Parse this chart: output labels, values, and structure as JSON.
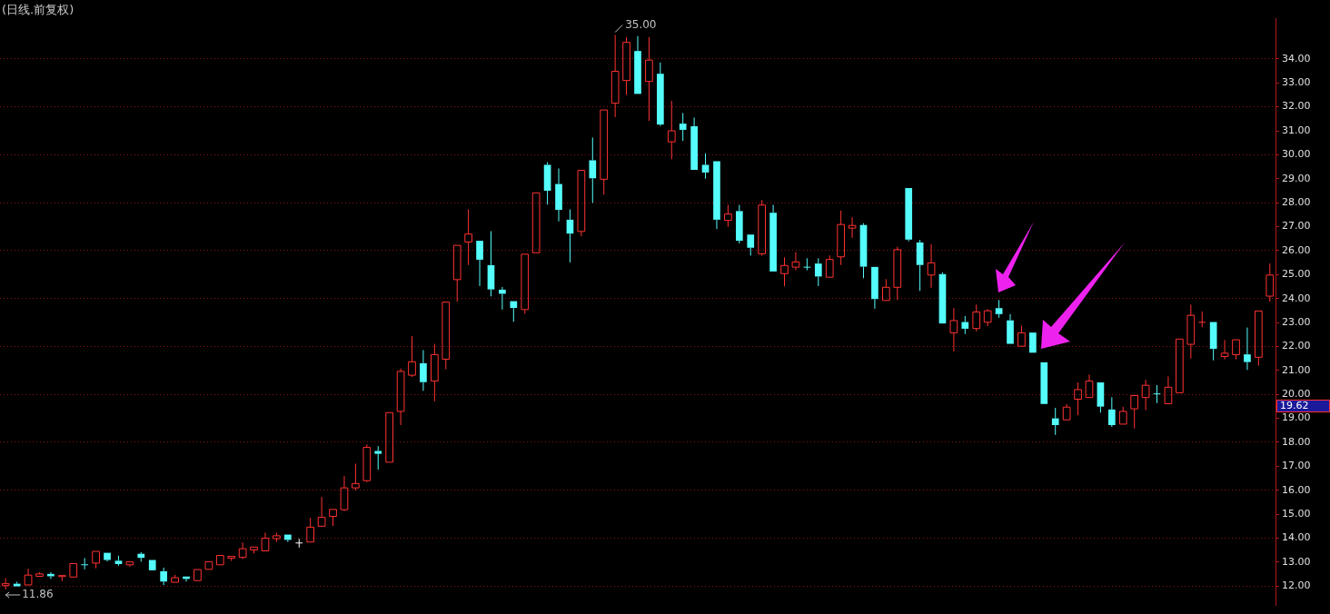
{
  "chart_data": {
    "type": "candlestick",
    "title": "(日线.前复权)",
    "categories": [
      null,
      null,
      null,
      null,
      null,
      null,
      null,
      null,
      null,
      null,
      null,
      null,
      null,
      null,
      null,
      null,
      null,
      null,
      null,
      null,
      null,
      null,
      null,
      null,
      null,
      null,
      null,
      null,
      null,
      null,
      null,
      null,
      null,
      null,
      null,
      null,
      null,
      null,
      null,
      null,
      null,
      null,
      null,
      null,
      null,
      null,
      null,
      null,
      null,
      null,
      null,
      null,
      null,
      null,
      null,
      null,
      null,
      null,
      null,
      null,
      null,
      null,
      null,
      null,
      null,
      null,
      null,
      null,
      null,
      null,
      null,
      null,
      null,
      null,
      null,
      null,
      null,
      null,
      null,
      null,
      null,
      null,
      null,
      null,
      null,
      null,
      null,
      null,
      null,
      null,
      null,
      null,
      null,
      null,
      null,
      null,
      null,
      null,
      null,
      null,
      null,
      null,
      null,
      null,
      null,
      null,
      null,
      null,
      null,
      null,
      null,
      null,
      null
    ],
    "ohlc": [
      [
        12.02,
        12.33,
        11.86,
        12.1
      ],
      [
        12.1,
        12.18,
        11.99,
        11.99
      ],
      [
        12.05,
        12.73,
        12.0,
        12.46
      ],
      [
        12.41,
        12.58,
        12.36,
        12.51
      ],
      [
        12.51,
        12.58,
        12.3,
        12.41
      ],
      [
        12.4,
        12.44,
        12.21,
        12.44
      ],
      [
        12.38,
        12.98,
        12.33,
        12.94
      ],
      [
        12.89,
        13.17,
        12.7,
        12.87
      ],
      [
        12.96,
        13.45,
        12.74,
        13.45
      ],
      [
        13.39,
        13.42,
        13.03,
        13.09
      ],
      [
        13.06,
        13.27,
        12.85,
        12.92
      ],
      [
        12.89,
        13.06,
        12.81,
        13.01
      ],
      [
        13.35,
        13.42,
        13.02,
        13.18
      ],
      [
        13.09,
        13.09,
        12.62,
        12.66
      ],
      [
        12.62,
        12.77,
        12.04,
        12.19
      ],
      [
        12.16,
        12.47,
        12.12,
        12.35
      ],
      [
        12.4,
        12.45,
        12.19,
        12.3
      ],
      [
        12.23,
        12.69,
        12.23,
        12.69
      ],
      [
        12.7,
        13.02,
        12.7,
        13.02
      ],
      [
        12.89,
        13.32,
        12.89,
        13.28
      ],
      [
        13.17,
        13.28,
        13.05,
        13.24
      ],
      [
        13.2,
        13.82,
        13.13,
        13.56
      ],
      [
        13.51,
        13.65,
        13.36,
        13.63
      ],
      [
        13.47,
        14.23,
        13.45,
        14.0
      ],
      [
        13.98,
        14.23,
        13.84,
        14.1
      ],
      [
        14.15,
        14.19,
        13.84,
        13.93
      ],
      [
        13.8,
        13.97,
        13.61,
        13.8
      ],
      [
        13.84,
        14.85,
        13.84,
        14.46
      ],
      [
        14.5,
        15.72,
        14.49,
        14.87
      ],
      [
        14.91,
        15.2,
        14.51,
        15.2
      ],
      [
        15.19,
        16.6,
        15.13,
        16.1
      ],
      [
        16.1,
        17.11,
        16.0,
        16.28
      ],
      [
        16.4,
        17.91,
        16.34,
        17.79
      ],
      [
        17.64,
        17.84,
        16.86,
        17.52
      ],
      [
        17.17,
        19.24,
        17.17,
        19.24
      ],
      [
        19.29,
        21.08,
        18.72,
        20.96
      ],
      [
        20.8,
        22.43,
        20.73,
        21.36
      ],
      [
        21.3,
        21.85,
        20.15,
        20.51
      ],
      [
        20.56,
        22.11,
        19.71,
        21.66
      ],
      [
        21.47,
        23.85,
        21.05,
        23.85
      ],
      [
        24.79,
        26.22,
        23.87,
        26.22
      ],
      [
        26.36,
        27.72,
        25.4,
        26.69
      ],
      [
        26.41,
        26.42,
        24.52,
        25.62
      ],
      [
        25.39,
        26.81,
        24.09,
        24.38
      ],
      [
        24.37,
        24.48,
        23.54,
        24.2
      ],
      [
        23.89,
        23.89,
        23.03,
        23.61
      ],
      [
        23.54,
        25.85,
        23.36,
        25.85
      ],
      [
        25.91,
        28.41,
        25.91,
        28.41
      ],
      [
        29.58,
        29.69,
        27.92,
        28.5
      ],
      [
        28.78,
        29.43,
        27.22,
        27.7
      ],
      [
        27.29,
        27.72,
        25.51,
        26.71
      ],
      [
        26.8,
        29.35,
        26.6,
        29.35
      ],
      [
        29.77,
        30.72,
        27.99,
        29.02
      ],
      [
        28.98,
        31.88,
        28.34,
        31.87
      ],
      [
        32.15,
        35.0,
        31.57,
        33.48
      ],
      [
        33.1,
        34.9,
        32.5,
        34.69
      ],
      [
        34.33,
        34.95,
        32.5,
        32.54
      ],
      [
        33.06,
        34.91,
        31.41,
        33.95
      ],
      [
        33.38,
        33.85,
        31.2,
        31.26
      ],
      [
        30.54,
        32.25,
        29.81,
        31.0
      ],
      [
        31.3,
        31.74,
        30.58,
        31.04
      ],
      [
        31.19,
        31.55,
        29.33,
        29.37
      ],
      [
        29.58,
        30.06,
        29.0,
        29.26
      ],
      [
        29.73,
        29.73,
        26.9,
        27.29
      ],
      [
        27.26,
        27.91,
        26.99,
        27.53
      ],
      [
        27.65,
        27.91,
        26.3,
        26.41
      ],
      [
        26.67,
        26.67,
        25.79,
        26.12
      ],
      [
        25.87,
        28.11,
        25.79,
        27.9
      ],
      [
        27.58,
        27.91,
        25.1,
        25.13
      ],
      [
        25.04,
        25.72,
        24.51,
        25.38
      ],
      [
        25.31,
        25.94,
        25.18,
        25.53
      ],
      [
        25.31,
        25.68,
        25.18,
        25.31
      ],
      [
        25.46,
        25.68,
        24.52,
        24.92
      ],
      [
        24.89,
        25.8,
        24.85,
        25.63
      ],
      [
        25.74,
        27.67,
        25.4,
        27.09
      ],
      [
        26.94,
        27.39,
        26.53,
        27.05
      ],
      [
        27.07,
        27.14,
        24.85,
        25.33
      ],
      [
        25.32,
        25.32,
        23.58,
        23.98
      ],
      [
        23.92,
        24.81,
        23.92,
        24.47
      ],
      [
        24.47,
        26.16,
        23.94,
        26.04
      ],
      [
        28.61,
        28.61,
        26.39,
        26.46
      ],
      [
        26.34,
        26.45,
        24.32,
        25.4
      ],
      [
        24.98,
        26.26,
        24.45,
        25.49
      ],
      [
        25.02,
        25.09,
        22.96,
        22.96
      ],
      [
        22.57,
        23.6,
        21.79,
        23.08
      ],
      [
        23.02,
        23.27,
        22.52,
        22.74
      ],
      [
        22.75,
        23.75,
        22.63,
        23.44
      ],
      [
        23.01,
        23.56,
        22.85,
        23.49
      ],
      [
        23.6,
        23.94,
        23.2,
        23.35
      ],
      [
        23.09,
        23.35,
        22.07,
        22.11
      ],
      [
        22.01,
        22.87,
        22.01,
        22.57
      ],
      [
        22.58,
        22.58,
        21.74,
        21.74
      ],
      [
        21.34,
        21.34,
        19.6,
        19.6
      ],
      [
        19.0,
        19.44,
        18.31,
        18.72
      ],
      [
        18.94,
        19.6,
        18.9,
        19.47
      ],
      [
        19.8,
        20.5,
        19.13,
        20.2
      ],
      [
        19.87,
        20.83,
        19.82,
        20.56
      ],
      [
        20.5,
        20.5,
        19.24,
        19.49
      ],
      [
        19.37,
        19.88,
        18.64,
        18.72
      ],
      [
        18.76,
        19.48,
        18.75,
        19.29
      ],
      [
        19.4,
        19.95,
        18.58,
        19.95
      ],
      [
        19.87,
        20.61,
        19.34,
        20.38
      ],
      [
        20.02,
        20.39,
        19.64,
        20.02
      ],
      [
        19.61,
        20.75,
        19.61,
        20.3
      ],
      [
        20.07,
        22.31,
        20.07,
        22.31
      ],
      [
        22.09,
        23.75,
        21.5,
        23.3
      ],
      [
        23.01,
        23.46,
        22.8,
        23.01
      ],
      [
        23.02,
        23.02,
        21.42,
        21.9
      ],
      [
        21.58,
        22.27,
        21.46,
        21.72
      ],
      [
        21.66,
        22.32,
        21.46,
        22.28
      ],
      [
        21.67,
        22.79,
        21.02,
        21.35
      ],
      [
        21.55,
        23.48,
        21.2,
        23.48
      ],
      [
        24.1,
        25.46,
        23.87,
        24.98
      ]
    ],
    "colors": [
      "#ff3232",
      "#54fcfc",
      "#ff3232",
      "#ff3232",
      "#54fcfc",
      "#ff3232",
      "#ff3232",
      "#54fcfc",
      "#ff3232",
      "#54fcfc",
      "#54fcfc",
      "#ff3232",
      "#54fcfc",
      "#54fcfc",
      "#54fcfc",
      "#ff3232",
      "#54fcfc",
      "#ff3232",
      "#ff3232",
      "#ff3232",
      "#ff3232",
      "#ff3232",
      "#ff3232",
      "#ff3232",
      "#ff3232",
      "#54fcfc",
      "#ffffff",
      "#ff3232",
      "#ff3232",
      "#ff3232",
      "#ff3232",
      "#ff3232",
      "#ff3232",
      "#54fcfc",
      "#ff3232",
      "#ff3232",
      "#ff3232",
      "#54fcfc",
      "#ff3232",
      "#ff3232",
      "#ff3232",
      "#ff3232",
      "#54fcfc",
      "#54fcfc",
      "#54fcfc",
      "#54fcfc",
      "#ff3232",
      "#ff3232",
      "#54fcfc",
      "#54fcfc",
      "#54fcfc",
      "#ff3232",
      "#54fcfc",
      "#ff3232",
      "#ff3232",
      "#ff3232",
      "#54fcfc",
      "#ff3232",
      "#54fcfc",
      "#ff3232",
      "#54fcfc",
      "#54fcfc",
      "#54fcfc",
      "#54fcfc",
      "#ff3232",
      "#54fcfc",
      "#54fcfc",
      "#ff3232",
      "#54fcfc",
      "#ff3232",
      "#ff3232",
      "#54fcfc",
      "#54fcfc",
      "#ff3232",
      "#ff3232",
      "#ff3232",
      "#54fcfc",
      "#54fcfc",
      "#ff3232",
      "#ff3232",
      "#54fcfc",
      "#54fcfc",
      "#ff3232",
      "#54fcfc",
      "#ff3232",
      "#54fcfc",
      "#ff3232",
      "#ff3232",
      "#54fcfc",
      "#54fcfc",
      "#ff3232",
      "#54fcfc",
      "#54fcfc",
      "#54fcfc",
      "#ff3232",
      "#ff3232",
      "#ff3232",
      "#54fcfc",
      "#54fcfc",
      "#ff3232",
      "#ff3232",
      "#ff3232",
      "#54fcfc",
      "#ff3232",
      "#ff3232",
      "#ff3232",
      "#ff3232",
      "#54fcfc",
      "#ff3232",
      "#ff3232",
      "#54fcfc",
      "#ff3232",
      "#ff3232"
    ],
    "ylim": [
      11.2,
      35.7
    ],
    "yticks": [
      {
        "value": 12,
        "label": "12.00"
      },
      {
        "value": 13,
        "label": "13.00"
      },
      {
        "value": 14,
        "label": "14.00"
      },
      {
        "value": 15,
        "label": "15.00"
      },
      {
        "value": 16,
        "label": "16.00"
      },
      {
        "value": 17,
        "label": "17.00"
      },
      {
        "value": 18,
        "label": "18.00"
      },
      {
        "value": 19,
        "label": "19.00"
      },
      {
        "value": 20,
        "label": "20.00"
      },
      {
        "value": 21,
        "label": "21.00"
      },
      {
        "value": 22,
        "label": "22.00"
      },
      {
        "value": 23,
        "label": "23.00"
      },
      {
        "value": 24,
        "label": "24.00"
      },
      {
        "value": 25,
        "label": "25.00"
      },
      {
        "value": 26,
        "label": "26.00"
      },
      {
        "value": 27,
        "label": "27.00"
      },
      {
        "value": 28,
        "label": "28.00"
      },
      {
        "value": 29,
        "label": "29.00"
      },
      {
        "value": 30,
        "label": "30.00"
      },
      {
        "value": 31,
        "label": "31.00"
      },
      {
        "value": 32,
        "label": "32.00"
      },
      {
        "value": 33,
        "label": "33.00"
      },
      {
        "value": 34,
        "label": "34.00"
      }
    ],
    "annotations": [
      "35.00",
      "11.86",
      "19.62"
    ],
    "grid": "y",
    "tick_labels": "y"
  }
}
